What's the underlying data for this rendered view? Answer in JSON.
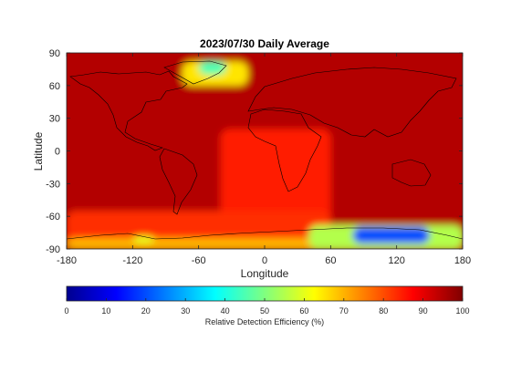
{
  "chart_data": {
    "type": "heatmap",
    "title": "2023/07/30 Daily Average",
    "xlabel": "Longitude",
    "ylabel": "Latitude",
    "xlim": [
      -180,
      180
    ],
    "ylim": [
      -90,
      90
    ],
    "xticks": [
      -180,
      -120,
      -60,
      0,
      60,
      120,
      180
    ],
    "yticks": [
      -90,
      -60,
      -30,
      0,
      30,
      60,
      90
    ],
    "colorbar": {
      "label": "Relative Detection Efficiency (%)",
      "range": [
        0,
        100
      ],
      "ticks": [
        0,
        10,
        20,
        30,
        40,
        50,
        60,
        70,
        80,
        90,
        100
      ],
      "colormap": "jet",
      "placement": "bottom"
    },
    "regions": [
      {
        "lon": [
          -180,
          180
        ],
        "lat": [
          -90,
          90
        ],
        "value": 95
      },
      {
        "lon": [
          -40,
          60
        ],
        "lat": [
          -70,
          20
        ],
        "value": 85
      },
      {
        "lon": [
          -180,
          60
        ],
        "lat": [
          -90,
          -55
        ],
        "value": 83
      },
      {
        "lon": [
          -180,
          180
        ],
        "lat": [
          -90,
          -80
        ],
        "value": 70
      },
      {
        "lon": [
          -75,
          -15
        ],
        "lat": [
          60,
          82
        ],
        "value": 65
      },
      {
        "lon": [
          -60,
          -35
        ],
        "lat": [
          70,
          82
        ],
        "value": 45
      },
      {
        "lon": [
          -120,
          -100
        ],
        "lat": [
          -85,
          -78
        ],
        "value": 60
      },
      {
        "lon": [
          40,
          180
        ],
        "lat": [
          -90,
          -68
        ],
        "value": 55
      },
      {
        "lon": [
          80,
          150
        ],
        "lat": [
          -85,
          -70
        ],
        "value": 20
      }
    ]
  },
  "colors": {
    "axis": "#262626",
    "coastline": "#000000",
    "background": "#ffffff"
  }
}
